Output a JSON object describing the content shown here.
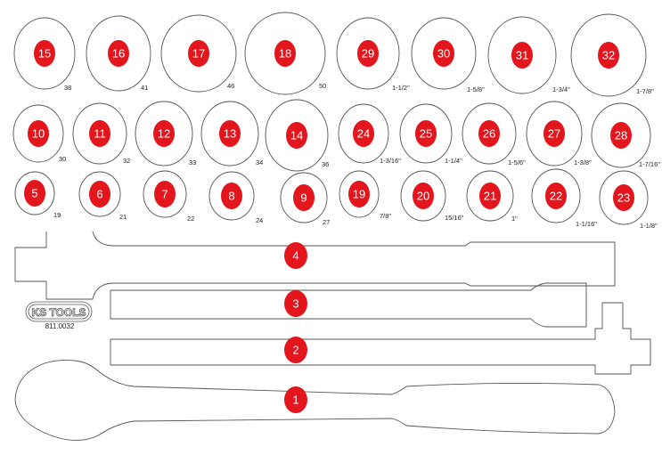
{
  "accent_color": "#e3151d",
  "brand": {
    "logo_text": "KS TOOLS",
    "article_number": "811.0032"
  },
  "sockets": [
    {
      "number": "15",
      "size": "38"
    },
    {
      "number": "16",
      "size": "41"
    },
    {
      "number": "17",
      "size": "46"
    },
    {
      "number": "18",
      "size": "50"
    },
    {
      "number": "29",
      "size": "1-1/2\""
    },
    {
      "number": "30",
      "size": "1-5/8\""
    },
    {
      "number": "31",
      "size": "1-3/4\""
    },
    {
      "number": "32",
      "size": "1-7/8\""
    },
    {
      "number": "10",
      "size": "30"
    },
    {
      "number": "11",
      "size": "32"
    },
    {
      "number": "12",
      "size": "33"
    },
    {
      "number": "13",
      "size": "34"
    },
    {
      "number": "14",
      "size": "36"
    },
    {
      "number": "24",
      "size": "1-3/16\""
    },
    {
      "number": "25",
      "size": "1-1/4\""
    },
    {
      "number": "26",
      "size": "1-5/6\""
    },
    {
      "number": "27",
      "size": "1-3/8\""
    },
    {
      "number": "28",
      "size": "1-7/16\""
    },
    {
      "number": "5",
      "size": "19"
    },
    {
      "number": "6",
      "size": "21"
    },
    {
      "number": "7",
      "size": "22"
    },
    {
      "number": "8",
      "size": "24"
    },
    {
      "number": "9",
      "size": "27"
    },
    {
      "number": "19",
      "size": "7/8\""
    },
    {
      "number": "20",
      "size": "15/16\""
    },
    {
      "number": "21",
      "size": "1\""
    },
    {
      "number": "22",
      "size": "1-1/16\""
    },
    {
      "number": "23",
      "size": "1-1/8\""
    }
  ],
  "tools": [
    {
      "number": "4"
    },
    {
      "number": "3"
    },
    {
      "number": "2"
    },
    {
      "number": "1"
    }
  ]
}
